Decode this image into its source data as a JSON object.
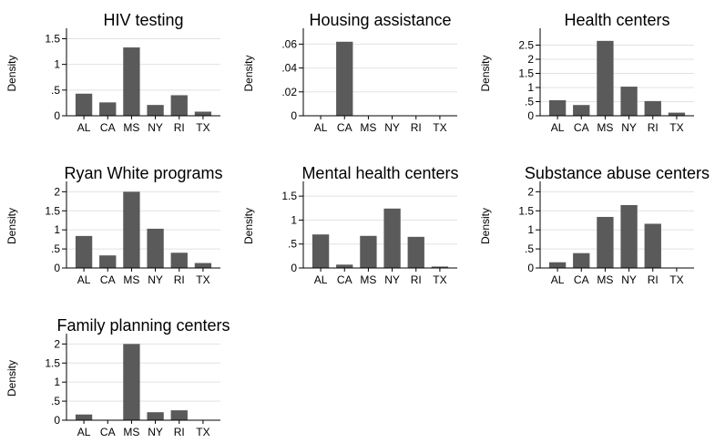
{
  "chart_data": [
    {
      "type": "bar",
      "title": "HIV testing",
      "ylabel": "Density",
      "categories": [
        "AL",
        "CA",
        "MS",
        "NY",
        "RI",
        "TX"
      ],
      "values": [
        0.43,
        0.26,
        1.33,
        0.21,
        0.4,
        0.08
      ],
      "ylim": [
        0,
        1.65
      ],
      "yticks": [
        0,
        0.5,
        1,
        1.5
      ],
      "ytick_labels": [
        "0",
        ".5",
        "1",
        "1.5"
      ]
    },
    {
      "type": "bar",
      "title": "Housing assistance",
      "ylabel": "Density",
      "categories": [
        "AL",
        "CA",
        "MS",
        "NY",
        "RI",
        "TX"
      ],
      "values": [
        0,
        0.062,
        0,
        0,
        0,
        0
      ],
      "ylim": [
        0,
        0.071
      ],
      "yticks": [
        0,
        0.02,
        0.04,
        0.06
      ],
      "ytick_labels": [
        "0",
        ".02",
        ".04",
        ".06"
      ]
    },
    {
      "type": "bar",
      "title": "Health centers",
      "ylabel": "Density",
      "categories": [
        "AL",
        "CA",
        "MS",
        "NY",
        "RI",
        "TX"
      ],
      "values": [
        0.55,
        0.38,
        2.65,
        1.03,
        0.52,
        0.11
      ],
      "ylim": [
        0,
        3.0
      ],
      "yticks": [
        0,
        0.5,
        1,
        1.5,
        2,
        2.5
      ],
      "ytick_labels": [
        "0",
        ".5",
        "1",
        "1.5",
        "2",
        "2.5"
      ]
    },
    {
      "type": "bar",
      "title": "Ryan White programs",
      "ylabel": "Density",
      "categories": [
        "AL",
        "CA",
        "MS",
        "NY",
        "RI",
        "TX"
      ],
      "values": [
        0.84,
        0.33,
        2.0,
        1.03,
        0.4,
        0.13
      ],
      "ylim": [
        0,
        2.2
      ],
      "yticks": [
        0,
        0.5,
        1,
        1.5,
        2
      ],
      "ytick_labels": [
        "0",
        ".5",
        "1",
        "1.5",
        "2"
      ]
    },
    {
      "type": "bar",
      "title": "Mental health centers",
      "ylabel": "Density",
      "categories": [
        "AL",
        "CA",
        "MS",
        "NY",
        "RI",
        "TX"
      ],
      "values": [
        0.7,
        0.07,
        0.67,
        1.24,
        0.65,
        0.03
      ],
      "ylim": [
        0,
        1.75
      ],
      "yticks": [
        0,
        0.5,
        1,
        1.5
      ],
      "ytick_labels": [
        "0",
        ".5",
        "1",
        "1.5"
      ]
    },
    {
      "type": "bar",
      "title": "Substance abuse centers",
      "ylabel": "Density",
      "categories": [
        "AL",
        "CA",
        "MS",
        "NY",
        "RI",
        "TX"
      ],
      "values": [
        0.15,
        0.39,
        1.34,
        1.65,
        1.16,
        0
      ],
      "ylim": [
        0,
        2.2
      ],
      "yticks": [
        0,
        0.5,
        1,
        1.5,
        2
      ],
      "ytick_labels": [
        "0",
        ".5",
        "1",
        "1.5",
        "2"
      ]
    },
    {
      "type": "bar",
      "title": "Family planning centers",
      "ylabel": "Density",
      "categories": [
        "AL",
        "CA",
        "MS",
        "NY",
        "RI",
        "TX"
      ],
      "values": [
        0.15,
        0,
        2.0,
        0.21,
        0.26,
        0
      ],
      "ylim": [
        0,
        2.2
      ],
      "yticks": [
        0,
        0.5,
        1,
        1.5,
        2
      ],
      "ytick_labels": [
        "0",
        ".5",
        "1",
        "1.5",
        "2"
      ]
    }
  ],
  "colors": {
    "bar": "#5a5a5a",
    "gridline": "#e2e2e2",
    "axis": "#000000",
    "background": "#ffffff"
  }
}
